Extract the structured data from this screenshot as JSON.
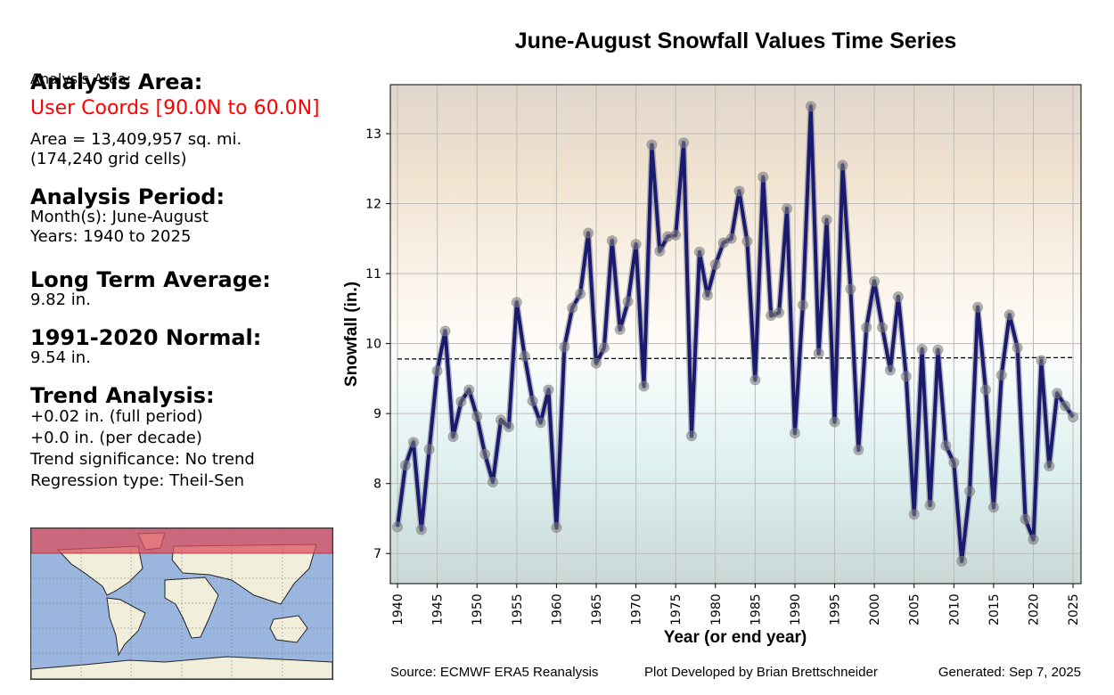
{
  "left_panel": {
    "area_heading": "Analysis Area:",
    "area_coords": "User Coords [90.0N to 60.0N]",
    "area_size": "Area = 13,409,957 sq. mi.",
    "grid_cells": "(174,240 grid cells)",
    "period_heading": "Analysis Period:",
    "months": "Month(s): June-August",
    "years": "Years: 1940 to 2025",
    "lta_heading": "Long Term Average:",
    "lta_value": "9.82 in.",
    "normal_heading": "1991-2020 Normal:",
    "normal_value": "9.54 in.",
    "trend_heading": "Trend Analysis:",
    "trend_full": "+0.02 in. (full period)",
    "trend_decade": "+0.0 in. (per decade)",
    "trend_sig": "Trend significance: No trend",
    "regression": "Regression type: Theil-Sen"
  },
  "map": {
    "ocean_color": "#9ab5de",
    "land_color": "#f1efdc",
    "highlight_color": "#d9505e",
    "highlight_region": "90.0N to 60.0N"
  },
  "footer": {
    "source": "Source: ECMWF ERA5 Reanalysis",
    "developer": "Plot Developed by Brian Brettschneider",
    "generated": "Generated: Sep 7, 2025"
  },
  "chart_data": {
    "type": "line",
    "title": "June-August Snowfall Values Time Series",
    "xlabel": "Year (or end year)",
    "ylabel": "Snowfall (in.)",
    "xlim": [
      1939.1,
      2026.0
    ],
    "ylim": [
      6.57,
      13.7
    ],
    "xticks": [
      1940,
      1945,
      1950,
      1955,
      1960,
      1965,
      1970,
      1975,
      1980,
      1985,
      1990,
      1995,
      2000,
      2005,
      2010,
      2015,
      2020,
      2025
    ],
    "yticks": [
      7,
      8,
      9,
      10,
      11,
      12,
      13
    ],
    "grid": true,
    "line_color": "#1a1a6e",
    "x": [
      1940,
      1941,
      1942,
      1943,
      1944,
      1945,
      1946,
      1947,
      1948,
      1949,
      1950,
      1951,
      1952,
      1953,
      1954,
      1955,
      1956,
      1957,
      1958,
      1959,
      1960,
      1961,
      1962,
      1963,
      1964,
      1965,
      1966,
      1967,
      1968,
      1969,
      1970,
      1971,
      1972,
      1973,
      1974,
      1975,
      1976,
      1977,
      1978,
      1979,
      1980,
      1981,
      1982,
      1983,
      1984,
      1985,
      1986,
      1987,
      1988,
      1989,
      1990,
      1991,
      1992,
      1993,
      1994,
      1995,
      1996,
      1997,
      1998,
      1999,
      2000,
      2001,
      2002,
      2003,
      2004,
      2005,
      2006,
      2007,
      2008,
      2009,
      2010,
      2011,
      2012,
      2013,
      2014,
      2015,
      2016,
      2017,
      2018,
      2019,
      2020,
      2021,
      2022,
      2023,
      2024,
      2025
    ],
    "series": [
      {
        "name": "Snowfall",
        "values": [
          7.38,
          8.26,
          8.59,
          7.34,
          8.49,
          9.61,
          10.18,
          8.67,
          9.17,
          9.34,
          8.96,
          8.42,
          8.02,
          8.91,
          8.81,
          10.59,
          9.82,
          9.18,
          8.87,
          9.34,
          7.37,
          9.95,
          10.51,
          10.71,
          11.58,
          9.72,
          9.94,
          11.47,
          10.2,
          10.6,
          11.42,
          9.39,
          12.84,
          11.32,
          11.53,
          11.55,
          12.87,
          8.68,
          11.31,
          10.69,
          11.13,
          11.44,
          11.5,
          12.18,
          11.46,
          9.48,
          12.38,
          10.4,
          10.44,
          11.93,
          8.72,
          10.55,
          13.39,
          9.86,
          11.77,
          8.88,
          12.55,
          10.78,
          8.48,
          10.23,
          10.89,
          10.23,
          9.62,
          10.67,
          9.53,
          7.56,
          9.92,
          7.69,
          9.91,
          8.54,
          8.3,
          6.89,
          7.89,
          10.52,
          9.34,
          7.66,
          9.55,
          10.41,
          9.94,
          7.49,
          7.2,
          9.76,
          8.25,
          9.29,
          9.11,
          8.95
        ]
      }
    ],
    "trend_line": {
      "name": "Theil-Sen trend",
      "x": [
        1940,
        2025
      ],
      "values": [
        9.78,
        9.8
      ],
      "style": "dashed"
    }
  }
}
